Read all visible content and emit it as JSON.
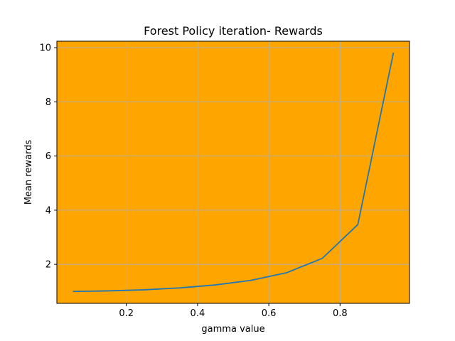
{
  "chart_data": {
    "type": "line",
    "title": "Forest  Policy iteration- Rewards",
    "xlabel": "gamma value",
    "ylabel": "Mean rewards",
    "xlim": [
      0.005,
      0.995
    ],
    "ylim": [
      0.56,
      10.24
    ],
    "x_ticks": [
      0.2,
      0.4,
      0.6,
      0.8
    ],
    "x_tick_labels": [
      "0.2",
      "0.4",
      "0.6",
      "0.8"
    ],
    "y_ticks": [
      2,
      4,
      6,
      8,
      10
    ],
    "y_tick_labels": [
      "2",
      "4",
      "6",
      "8",
      "10"
    ],
    "grid": true,
    "legend": "none",
    "background_color": "#ffa500",
    "grid_color": "#b0b0b0",
    "series": [
      {
        "color": "#1f77b4",
        "x": [
          0.05,
          0.15,
          0.25,
          0.35,
          0.45,
          0.55,
          0.65,
          0.75,
          0.85,
          0.95
        ],
        "y": [
          1.0,
          1.02,
          1.06,
          1.13,
          1.24,
          1.41,
          1.69,
          2.22,
          3.47,
          9.82
        ]
      }
    ]
  }
}
